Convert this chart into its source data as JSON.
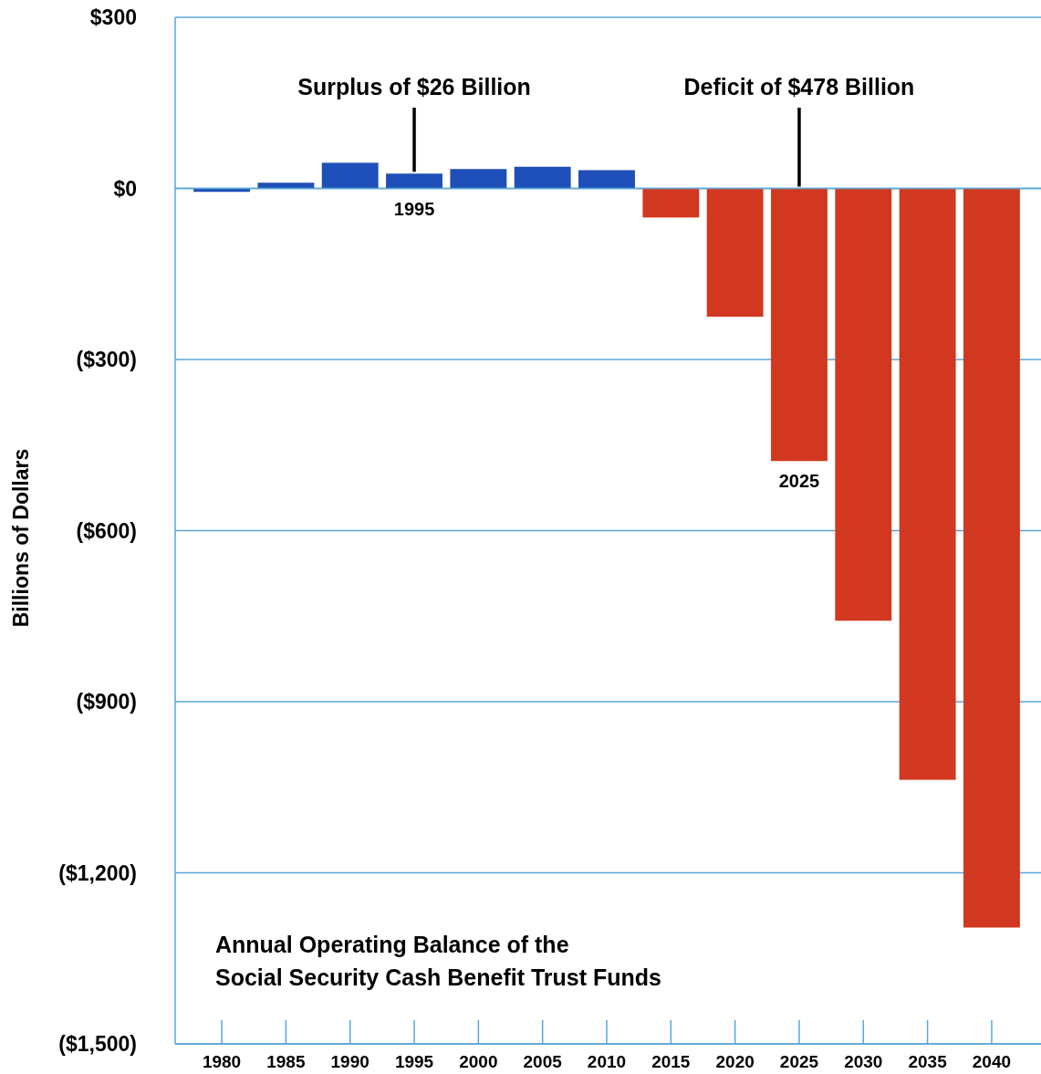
{
  "chart_data": {
    "type": "bar",
    "title": "Annual Operating Balance of the\nSocial Security Cash Benefit Trust Funds",
    "ylabel": "Billions of Dollars",
    "categories": [
      "1980",
      "1985",
      "1990",
      "1995",
      "2000",
      "2005",
      "2010",
      "2015",
      "2020",
      "2025",
      "2030",
      "2035",
      "2040"
    ],
    "values": [
      -6,
      10,
      45,
      26,
      34,
      38,
      32,
      -51,
      -225,
      -478,
      -758,
      -1037,
      -1296
    ],
    "colors": [
      "#1f4fb8",
      "#1f4fb8",
      "#1f4fb8",
      "#1f4fb8",
      "#1f4fb8",
      "#1f4fb8",
      "#1f4fb8",
      "#d2381f",
      "#d2381f",
      "#d2381f",
      "#d2381f",
      "#d2381f",
      "#d2381f"
    ],
    "ylim": [
      -1500,
      300
    ],
    "yticks": [
      {
        "value": 300,
        "label": "$300"
      },
      {
        "value": 0,
        "label": "$0"
      },
      {
        "value": -300,
        "label": "($300)"
      },
      {
        "value": -600,
        "label": "($600)"
      },
      {
        "value": -900,
        "label": "($900)"
      },
      {
        "value": -1200,
        "label": "($1,200)"
      },
      {
        "value": -1500,
        "label": "($1,500)"
      }
    ],
    "grid": "y",
    "annotations": [
      {
        "text": "Surplus of $26 Billion",
        "x": "1995",
        "y": 26
      },
      {
        "text": "Deficit of $478 Billion",
        "x": "2025",
        "y": 0
      },
      {
        "text": "1995",
        "x": "1995",
        "y": 26
      },
      {
        "text": "2025",
        "x": "2025",
        "y": -478
      }
    ]
  }
}
